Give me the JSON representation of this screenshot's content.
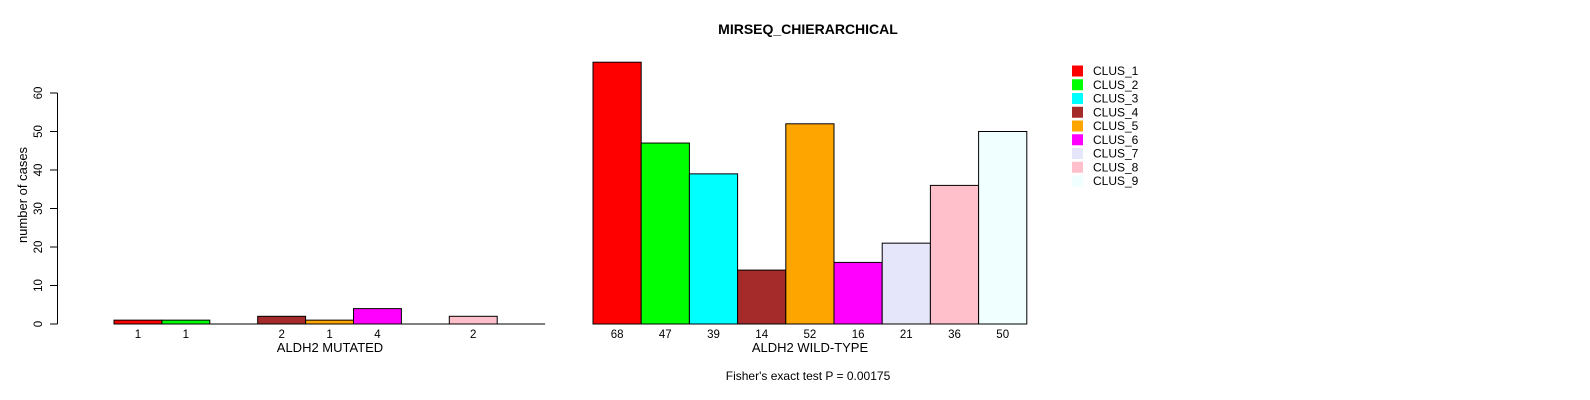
{
  "title": "MIRSEQ_CHIERARCHICAL",
  "annotation": "Fisher's exact test P = 0.00175",
  "ylabel": "number of cases",
  "legend": {
    "position": "right",
    "entries": [
      {
        "label": "CLUS_1",
        "color": "#FF0000"
      },
      {
        "label": "CLUS_2",
        "color": "#00FF00"
      },
      {
        "label": "CLUS_3",
        "color": "#00FFFF"
      },
      {
        "label": "CLUS_4",
        "color": "#A52A2A"
      },
      {
        "label": "CLUS_5",
        "color": "#FFA500"
      },
      {
        "label": "CLUS_6",
        "color": "#FF00FF"
      },
      {
        "label": "CLUS_7",
        "color": "#E6E6FA"
      },
      {
        "label": "CLUS_8",
        "color": "#FFC0CB"
      },
      {
        "label": "CLUS_9",
        "color": "#F0FFFF"
      }
    ]
  },
  "chart_data": [
    {
      "type": "bar",
      "panel": "left",
      "title": "",
      "xlabel": "ALDH2 MUTATED",
      "ylabel": "number of cases",
      "categories": [
        "CLUS_1",
        "CLUS_2",
        "CLUS_3",
        "CLUS_4",
        "CLUS_5",
        "CLUS_6",
        "CLUS_7",
        "CLUS_8",
        "CLUS_9"
      ],
      "values": [
        1,
        1,
        0,
        2,
        1,
        4,
        0,
        2,
        0
      ],
      "bar_value_labels": [
        "1",
        "1",
        "",
        "2",
        "1",
        "4",
        "",
        "2",
        ""
      ],
      "colors": [
        "#FF0000",
        "#00FF00",
        "#00FFFF",
        "#A52A2A",
        "#FFA500",
        "#FF00FF",
        "#E6E6FA",
        "#FFC0CB",
        "#F0FFFF"
      ],
      "yticks": [
        0,
        10,
        20,
        30,
        40,
        50,
        60
      ],
      "ylim": [
        0,
        68
      ],
      "grid": false,
      "bar_border": "#000000"
    },
    {
      "type": "bar",
      "panel": "right",
      "title": "MIRSEQ_CHIERARCHICAL",
      "xlabel": "ALDH2 WILD-TYPE",
      "ylabel": "",
      "categories": [
        "CLUS_1",
        "CLUS_2",
        "CLUS_3",
        "CLUS_4",
        "CLUS_5",
        "CLUS_6",
        "CLUS_7",
        "CLUS_8",
        "CLUS_9"
      ],
      "values": [
        68,
        47,
        39,
        14,
        52,
        16,
        21,
        36,
        50
      ],
      "bar_value_labels": [
        "68",
        "47",
        "39",
        "14",
        "52",
        "16",
        "21",
        "36",
        "50"
      ],
      "colors": [
        "#FF0000",
        "#00FF00",
        "#00FFFF",
        "#A52A2A",
        "#FFA500",
        "#FF00FF",
        "#E6E6FA",
        "#FFC0CB",
        "#F0FFFF"
      ],
      "yticks": [
        0,
        10,
        20,
        30,
        40,
        50,
        60
      ],
      "ylim": [
        0,
        68
      ],
      "grid": false,
      "bar_border": "#000000"
    }
  ]
}
